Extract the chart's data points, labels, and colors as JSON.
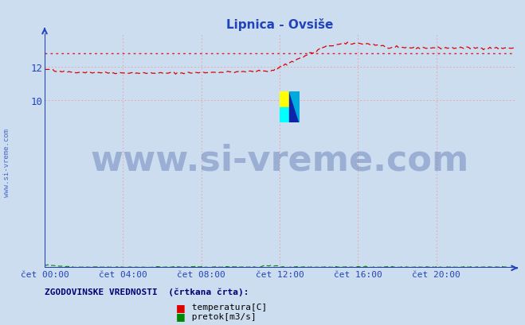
{
  "title": "Lipnica - Ovsiše",
  "title_color": "#2244bb",
  "bg_color": "#ccddf0",
  "plot_bg_color": "#ccddf0",
  "fig_bg_color": "#ccddf0",
  "x_ticks": [
    0,
    240,
    480,
    720,
    960,
    1200,
    1380
  ],
  "x_tick_labels": [
    "čet 00:00",
    "čet 04:00",
    "čet 08:00",
    "čet 12:00",
    "čet 16:00",
    "čet 20:00",
    ""
  ],
  "x_max": 1440,
  "y_ticks": [
    10,
    12
  ],
  "y_min": 0,
  "y_max": 14.0,
  "temp_color": "#dd0000",
  "flow_color": "#008800",
  "hist_color": "#dd0000",
  "grid_color_v": "#ee9999",
  "grid_color_h": "#ee9999",
  "axis_color": "#2244bb",
  "watermark_text": "www.si-vreme.com",
  "watermark_color": "#1a3a8a",
  "watermark_alpha": 0.28,
  "watermark_fontsize": 32,
  "legend_label_temp": " temperatura[C]",
  "legend_label_flow": " pretok[m3/s]",
  "legend_title": "ZGODOVINSKE VREDNOSTI  (črtkana črta):",
  "n_points": 288,
  "hist_temp_val": 12.82,
  "sidebar_text": "www.si-vreme.com"
}
